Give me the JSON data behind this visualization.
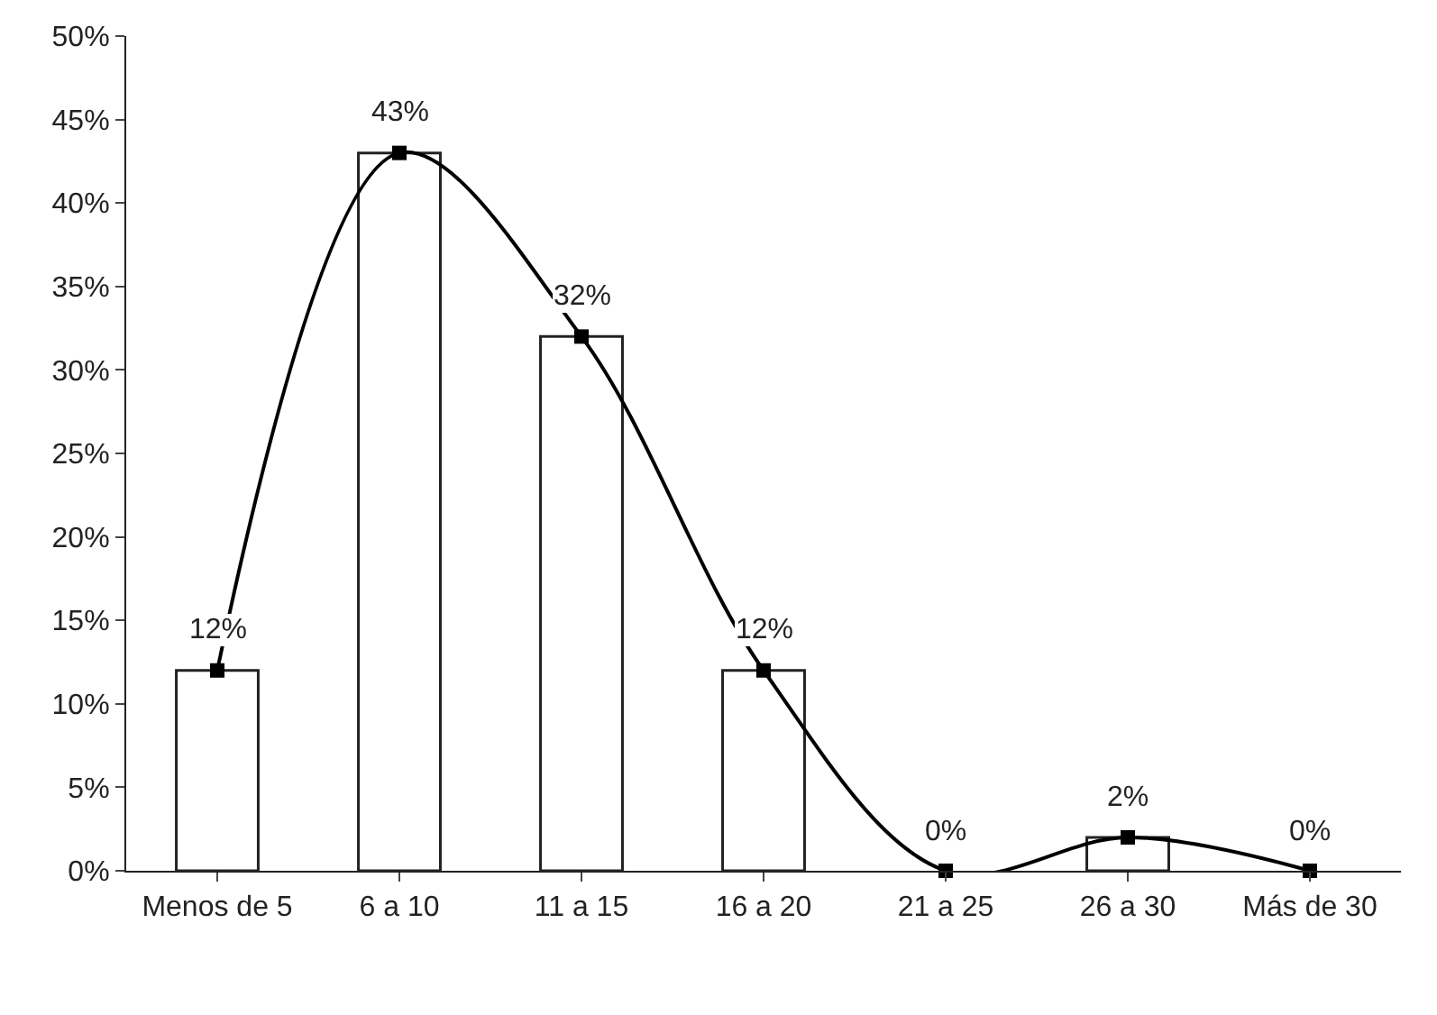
{
  "chart_data": {
    "type": "bar",
    "categories": [
      "Menos de 5",
      "6 a 10",
      "11 a 15",
      "16 a 20",
      "21 a 25",
      "26 a 30",
      "Más de 30"
    ],
    "series": [
      {
        "color": "#ffffff",
        "values": [
          12,
          43,
          32,
          12,
          0,
          2,
          0
        ]
      },
      {
        "type": "line",
        "color": "#000000",
        "values": [
          12,
          43,
          32,
          12,
          0,
          2,
          0
        ],
        "value_labels": [
          "12%",
          "43%",
          "32%",
          "12%",
          "0%",
          "2%",
          "0%"
        ]
      }
    ],
    "ylim": [
      0,
      50
    ],
    "yticks": [
      {
        "value": 0,
        "label": "0%"
      },
      {
        "value": 5,
        "label": "5%"
      },
      {
        "value": 10,
        "label": "10%"
      },
      {
        "value": 15,
        "label": "15%"
      },
      {
        "value": 20,
        "label": "20%"
      },
      {
        "value": 25,
        "label": "25%"
      },
      {
        "value": 30,
        "label": "30%"
      },
      {
        "value": 35,
        "label": "35%"
      },
      {
        "value": 40,
        "label": "40%"
      },
      {
        "value": 45,
        "label": "45%"
      },
      {
        "value": 50,
        "label": "50%"
      }
    ],
    "grid": false,
    "legend": false,
    "marker": "square",
    "line_style": "solid"
  }
}
